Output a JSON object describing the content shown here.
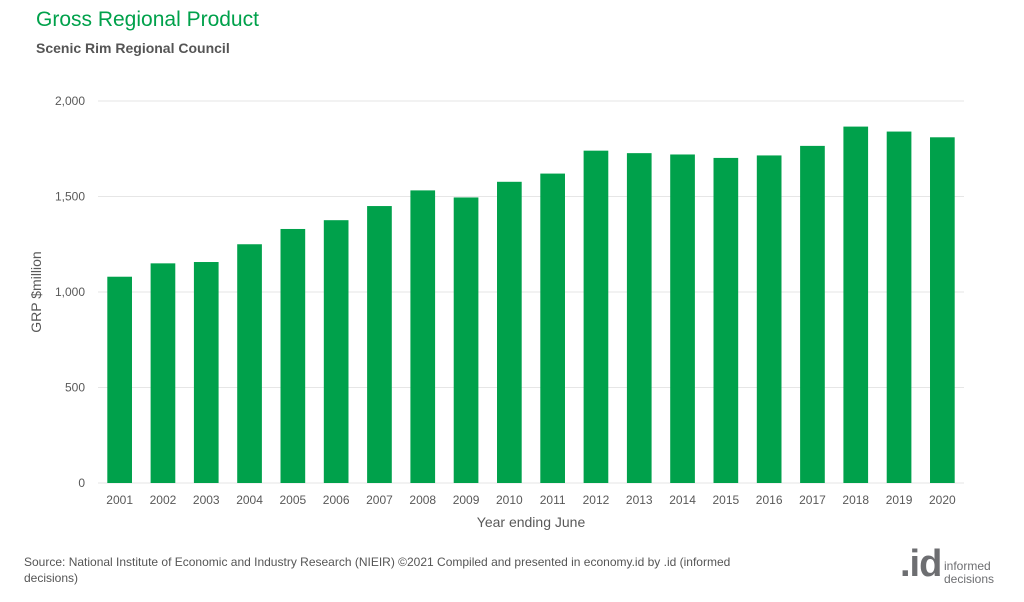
{
  "header": {
    "title": "Gross Regional Product",
    "subtitle": "Scenic Rim Regional Council"
  },
  "footer": {
    "source": "Source: National Institute of Economic and Industry Research (NIEIR) ©2021 Compiled and presented in economy.id by .id (informed decisions)",
    "logo_mark": ".id",
    "logo_line1": "informed",
    "logo_line2": "decisions"
  },
  "colors": {
    "bar": "#00a14b",
    "title": "#00a14b",
    "grid": "#e6e6e6",
    "axis_text": "#595959"
  },
  "chart_data": {
    "type": "bar",
    "title": "Gross Regional Product",
    "subtitle": "Scenic Rim Regional Council",
    "xlabel": "Year ending June",
    "ylabel": "GRP $million",
    "ylim": [
      0,
      2000
    ],
    "yticks": [
      0,
      500,
      1000,
      1500,
      2000
    ],
    "ytick_labels": [
      "0",
      "500",
      "1,000",
      "1,500",
      "2,000"
    ],
    "grid": true,
    "legend": "none",
    "categories": [
      "2001",
      "2002",
      "2003",
      "2004",
      "2005",
      "2006",
      "2007",
      "2008",
      "2009",
      "2010",
      "2011",
      "2012",
      "2013",
      "2014",
      "2015",
      "2016",
      "2017",
      "2018",
      "2019",
      "2020"
    ],
    "series": [
      {
        "values": [
          1080,
          1150,
          1157,
          1250,
          1330,
          1376,
          1450,
          1532,
          1495,
          1577,
          1620,
          1740,
          1727,
          1720,
          1702,
          1715,
          1765,
          1866,
          1840,
          1810
        ]
      }
    ]
  }
}
